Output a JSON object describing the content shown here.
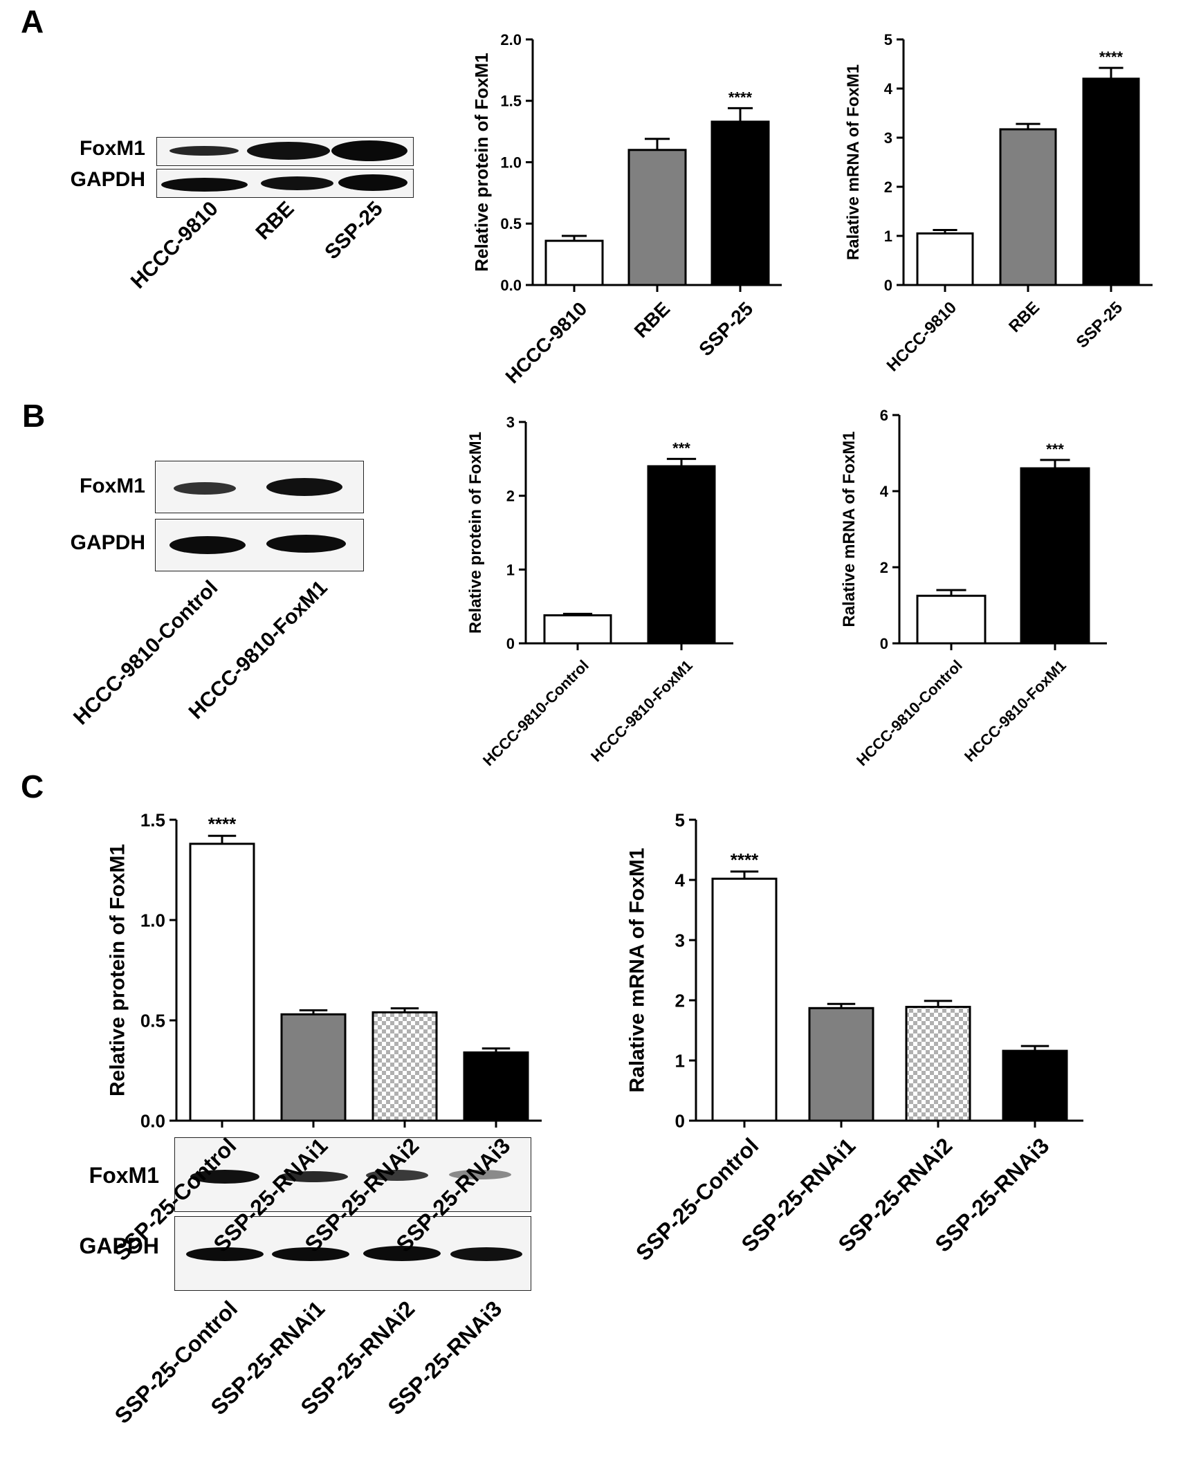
{
  "panels": {
    "a": "A",
    "b": "B",
    "c": "C"
  },
  "blots": {
    "a": {
      "rows": [
        "FoxM1",
        "GAPDH"
      ],
      "lanes": [
        "HCCC-9810",
        "RBE",
        "SSP-25"
      ]
    },
    "b": {
      "rows": [
        "FoxM1",
        "GAPDH"
      ],
      "lanes": [
        "HCCC-9810-Control",
        "HCCC-9810-FoxM1"
      ]
    },
    "c": {
      "rows": [
        "FoxM1",
        "GAPDH"
      ],
      "lanes": [
        "SSP-25-Control",
        "SSP-25-RNAi1",
        "SSP-25-RNAi2",
        "SSP-25-RNAi3"
      ]
    }
  },
  "chart_data": [
    {
      "id": "A-protein",
      "type": "bar",
      "ylabel": "Relative protein of FoxM1",
      "categories": [
        "HCCC-9810",
        "RBE",
        "SSP-25"
      ],
      "values": [
        0.36,
        1.1,
        1.33
      ],
      "errors": [
        0.04,
        0.09,
        0.11
      ],
      "fills": [
        "white",
        "#808080",
        "#000000"
      ],
      "ylim": [
        0,
        2.0
      ],
      "yticks": [
        "0.0",
        "0.5",
        "1.0",
        "1.5",
        "2.0"
      ],
      "annotations": [
        "",
        "",
        "****"
      ]
    },
    {
      "id": "A-mrna",
      "type": "bar",
      "ylabel": "Ralative mRNA of FoxM1",
      "categories": [
        "HCCC-9810",
        "RBE",
        "SSP-25"
      ],
      "values": [
        1.05,
        3.17,
        4.2
      ],
      "errors": [
        0.07,
        0.11,
        0.22
      ],
      "fills": [
        "white",
        "#808080",
        "#000000"
      ],
      "ylim": [
        0,
        5
      ],
      "yticks": [
        "0",
        "1",
        "2",
        "3",
        "4",
        "5"
      ],
      "annotations": [
        "",
        "",
        "****"
      ]
    },
    {
      "id": "B-protein",
      "type": "bar",
      "ylabel": "Relative protein of FoxM1",
      "categories": [
        "HCCC-9810-Control",
        "HCCC-9810-FoxM1"
      ],
      "values": [
        0.38,
        2.4
      ],
      "errors": [
        0.02,
        0.1
      ],
      "fills": [
        "white",
        "#000000"
      ],
      "ylim": [
        0,
        3
      ],
      "yticks": [
        "0",
        "1",
        "2",
        "3"
      ],
      "annotations": [
        "",
        "***"
      ]
    },
    {
      "id": "B-mrna",
      "type": "bar",
      "ylabel": "Ralative mRNA of FoxM1",
      "categories": [
        "HCCC-9810-Control",
        "HCCC-9810-FoxM1"
      ],
      "values": [
        1.25,
        4.6
      ],
      "errors": [
        0.15,
        0.22
      ],
      "fills": [
        "white",
        "#000000"
      ],
      "ylim": [
        0,
        6
      ],
      "yticks": [
        "0",
        "2",
        "4",
        "6"
      ],
      "annotations": [
        "",
        "***"
      ]
    },
    {
      "id": "C-protein",
      "type": "bar",
      "ylabel": "Relative protein of FoxM1",
      "categories": [
        "SSP-25-Control",
        "SSP-25-RNAi1",
        "SSP-25-RNAi2",
        "SSP-25-RNAi3"
      ],
      "values": [
        1.38,
        0.53,
        0.54,
        0.34
      ],
      "errors": [
        0.04,
        0.02,
        0.02,
        0.02
      ],
      "fills": [
        "white",
        "#808080",
        "checker",
        "#000000"
      ],
      "ylim": [
        0,
        1.5
      ],
      "yticks": [
        "0.0",
        "0.5",
        "1.0",
        "1.5"
      ],
      "annotations": [
        "****",
        "",
        "",
        ""
      ]
    },
    {
      "id": "C-mrna",
      "type": "bar",
      "ylabel": "Ralative mRNA of FoxM1",
      "categories": [
        "SSP-25-Control",
        "SSP-25-RNAi1",
        "SSP-25-RNAi2",
        "SSP-25-RNAi3"
      ],
      "values": [
        4.02,
        1.87,
        1.89,
        1.16
      ],
      "errors": [
        0.12,
        0.07,
        0.1,
        0.08
      ],
      "fills": [
        "white",
        "#808080",
        "checker",
        "#000000"
      ],
      "ylim": [
        0,
        5
      ],
      "yticks": [
        "0",
        "1",
        "2",
        "3",
        "4",
        "5"
      ],
      "annotations": [
        "****",
        "",
        "",
        ""
      ]
    }
  ]
}
